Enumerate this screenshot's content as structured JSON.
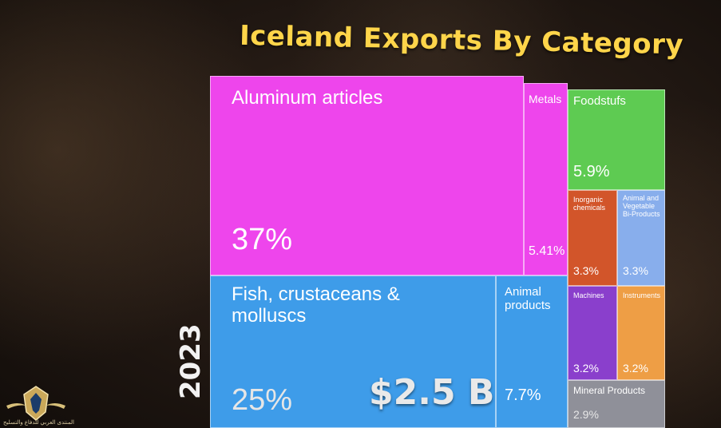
{
  "title": "Iceland Exports By Category",
  "year": "2023",
  "total_label": "$2.5 B",
  "watermark_text": "المنتدى العربي للدفاع والتسليح",
  "colors": {
    "title": "#ffd54a",
    "aluminum": "#ee45ec",
    "fish": "#3e9ce9",
    "foodstuffs": "#5ecb52",
    "inorganic": "#d2552a",
    "animal_veg": "#88aeec",
    "machines": "#8a3fcc",
    "instruments": "#ee9e45",
    "mineral": "#8f9099"
  },
  "chart_data": {
    "type": "treemap",
    "title": "Iceland Exports By Category",
    "year": "2023",
    "total": "$2.5 B",
    "items": [
      {
        "label": "Aluminum articles",
        "value": 37,
        "value_label": "37%",
        "color": "#ee45ec"
      },
      {
        "label": "Metals",
        "value": 5.41,
        "value_label": "5.41%",
        "color": "#ee45ec"
      },
      {
        "label": "Foodstufs",
        "value": 5.9,
        "value_label": "5.9%",
        "color": "#5ecb52"
      },
      {
        "label": "Inorganic chemicals",
        "value": 3.3,
        "value_label": "3.3%",
        "color": "#d2552a"
      },
      {
        "label": "Animal and Vegetable Bi-Products",
        "value": 3.3,
        "value_label": "3.3%",
        "color": "#88aeec"
      },
      {
        "label": "Fish, crustaceans & molluscs",
        "value": 25,
        "value_label": "25%",
        "color": "#3e9ce9"
      },
      {
        "label": "Animal products",
        "value": 7.7,
        "value_label": "7.7%",
        "color": "#3e9ce9"
      },
      {
        "label": "Machines",
        "value": 3.2,
        "value_label": "3.2%",
        "color": "#8a3fcc"
      },
      {
        "label": "Instruments",
        "value": 3.2,
        "value_label": "3.2%",
        "color": "#ee9e45"
      },
      {
        "label": "Mineral Products",
        "value": 2.9,
        "value_label": "2.9%",
        "color": "#8f9099"
      }
    ]
  }
}
